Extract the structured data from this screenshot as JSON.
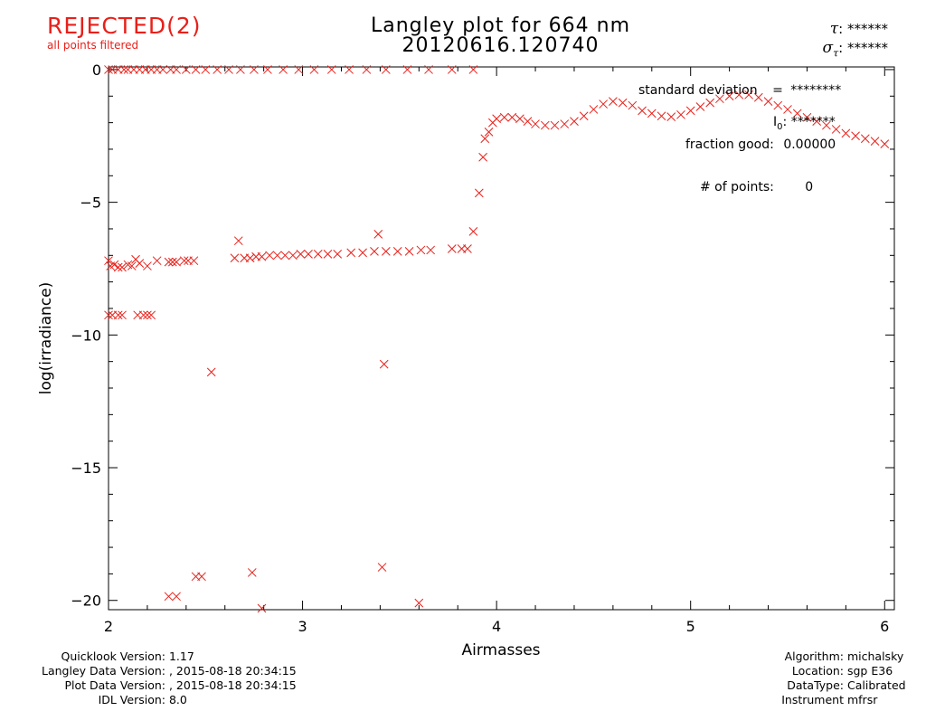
{
  "status": {
    "label": "REJECTED(2)",
    "sublabel": "all points filtered"
  },
  "header": {
    "title_line1": "Langley plot for 664 nm",
    "title_line2": "20120616.120740",
    "tau_value": "******",
    "sigma_tau_value": "******"
  },
  "stats": {
    "std_label": "standard deviation",
    "std_eq": "=",
    "std_value": "********",
    "i0_label": "I",
    "i0_sub": "0",
    "i0_value": "*******",
    "fraction_label": "fraction good:",
    "fraction_value": "0.00000",
    "points_label": "# of points:",
    "points_value": "0"
  },
  "footer": {
    "left": [
      {
        "label": "Quicklook Version:",
        "value": "1.17"
      },
      {
        "label": "Langley Data Version:",
        "value": ", 2015-08-18 20:34:15"
      },
      {
        "label": "Plot Data Version:",
        "value": ", 2015-08-18 20:34:15"
      },
      {
        "label": "IDL Version:",
        "value": "8.0"
      }
    ],
    "right": [
      {
        "label": "Algorithm:",
        "value": "michalsky"
      },
      {
        "label": "Location:",
        "value": "sgp E36"
      },
      {
        "label": "DataType:",
        "value": "Calibrated"
      },
      {
        "label": "Instrument",
        "value": "mfrsr"
      }
    ]
  },
  "colors": {
    "marker": "#e8201a",
    "axes": "#000000",
    "background": "#ffffff"
  },
  "chart_data": {
    "type": "scatter",
    "marker": "x",
    "xlabel": "Airmasses",
    "ylabel": "log(irradiance)",
    "xlim": [
      2,
      6.05
    ],
    "ylim": [
      -20.35,
      0.1
    ],
    "xticks": [
      2,
      3,
      4,
      5,
      6
    ],
    "yticks": [
      0,
      -5,
      -10,
      -15,
      -20
    ],
    "grid": false,
    "series": [
      {
        "values": [
          [
            2.0,
            0.0
          ],
          [
            2.02,
            0.0
          ],
          [
            2.05,
            0.0
          ],
          [
            2.08,
            0.0
          ],
          [
            2.1,
            0.0
          ],
          [
            2.13,
            0.0
          ],
          [
            2.16,
            0.0
          ],
          [
            2.19,
            0.0
          ],
          [
            2.22,
            0.0
          ],
          [
            2.25,
            0.0
          ],
          [
            2.28,
            0.0
          ],
          [
            2.32,
            0.0
          ],
          [
            2.35,
            0.0
          ],
          [
            2.4,
            0.0
          ],
          [
            2.45,
            0.0
          ],
          [
            2.5,
            0.0
          ],
          [
            2.56,
            0.0
          ],
          [
            2.62,
            0.0
          ],
          [
            2.68,
            0.0
          ],
          [
            2.75,
            0.0
          ],
          [
            2.82,
            0.0
          ],
          [
            2.9,
            0.0
          ],
          [
            2.98,
            0.0
          ],
          [
            3.06,
            0.0
          ],
          [
            3.15,
            0.0
          ],
          [
            3.24,
            0.0
          ],
          [
            3.33,
            0.0
          ],
          [
            3.43,
            0.0
          ],
          [
            3.54,
            0.0
          ],
          [
            3.65,
            0.0
          ],
          [
            3.77,
            0.0
          ],
          [
            3.88,
            0.0
          ],
          [
            2.0,
            -7.2
          ],
          [
            2.01,
            -7.4
          ],
          [
            2.03,
            -7.35
          ],
          [
            2.05,
            -7.45
          ],
          [
            2.07,
            -7.45
          ],
          [
            2.1,
            -7.35
          ],
          [
            2.12,
            -7.4
          ],
          [
            2.14,
            -7.15
          ],
          [
            2.16,
            -7.3
          ],
          [
            2.2,
            -7.4
          ],
          [
            2.25,
            -7.2
          ],
          [
            2.31,
            -7.25
          ],
          [
            2.33,
            -7.25
          ],
          [
            2.35,
            -7.25
          ],
          [
            2.39,
            -7.2
          ],
          [
            2.41,
            -7.2
          ],
          [
            2.44,
            -7.2
          ],
          [
            2.0,
            -9.25
          ],
          [
            2.02,
            -9.25
          ],
          [
            2.05,
            -9.25
          ],
          [
            2.07,
            -9.25
          ],
          [
            2.15,
            -9.25
          ],
          [
            2.18,
            -9.25
          ],
          [
            2.2,
            -9.25
          ],
          [
            2.22,
            -9.25
          ],
          [
            2.65,
            -7.1
          ],
          [
            2.67,
            -6.45
          ],
          [
            2.7,
            -7.1
          ],
          [
            2.73,
            -7.1
          ],
          [
            2.76,
            -7.05
          ],
          [
            2.79,
            -7.05
          ],
          [
            2.83,
            -7.0
          ],
          [
            2.87,
            -7.0
          ],
          [
            2.91,
            -7.0
          ],
          [
            2.95,
            -7.0
          ],
          [
            2.99,
            -6.95
          ],
          [
            3.03,
            -6.95
          ],
          [
            3.08,
            -6.95
          ],
          [
            3.13,
            -6.95
          ],
          [
            3.18,
            -6.95
          ],
          [
            3.25,
            -6.9
          ],
          [
            3.31,
            -6.9
          ],
          [
            3.37,
            -6.85
          ],
          [
            3.39,
            -6.2
          ],
          [
            3.43,
            -6.85
          ],
          [
            3.49,
            -6.85
          ],
          [
            3.55,
            -6.85
          ],
          [
            3.61,
            -6.8
          ],
          [
            3.66,
            -6.8
          ],
          [
            3.77,
            -6.75
          ],
          [
            3.82,
            -6.75
          ],
          [
            3.85,
            -6.75
          ],
          [
            3.88,
            -6.1
          ],
          [
            3.91,
            -4.65
          ],
          [
            3.93,
            -3.3
          ],
          [
            3.94,
            -2.6
          ],
          [
            3.96,
            -2.35
          ],
          [
            3.98,
            -2.0
          ],
          [
            4.0,
            -1.85
          ],
          [
            4.04,
            -1.8
          ],
          [
            4.08,
            -1.8
          ],
          [
            4.12,
            -1.85
          ],
          [
            4.16,
            -1.95
          ],
          [
            4.2,
            -2.05
          ],
          [
            4.25,
            -2.1
          ],
          [
            4.3,
            -2.1
          ],
          [
            4.35,
            -2.05
          ],
          [
            4.4,
            -1.95
          ],
          [
            4.45,
            -1.75
          ],
          [
            4.5,
            -1.5
          ],
          [
            4.55,
            -1.3
          ],
          [
            4.6,
            -1.2
          ],
          [
            4.65,
            -1.25
          ],
          [
            4.7,
            -1.35
          ],
          [
            4.75,
            -1.55
          ],
          [
            4.8,
            -1.65
          ],
          [
            4.85,
            -1.75
          ],
          [
            4.9,
            -1.78
          ],
          [
            4.95,
            -1.7
          ],
          [
            5.0,
            -1.55
          ],
          [
            5.05,
            -1.4
          ],
          [
            5.1,
            -1.25
          ],
          [
            5.15,
            -1.1
          ],
          [
            5.2,
            -1.0
          ],
          [
            5.25,
            -0.95
          ],
          [
            5.3,
            -0.95
          ],
          [
            5.35,
            -1.05
          ],
          [
            5.4,
            -1.2
          ],
          [
            5.45,
            -1.35
          ],
          [
            5.5,
            -1.5
          ],
          [
            5.55,
            -1.65
          ],
          [
            5.6,
            -1.8
          ],
          [
            5.65,
            -1.95
          ],
          [
            5.7,
            -2.1
          ],
          [
            5.75,
            -2.25
          ],
          [
            5.8,
            -2.4
          ],
          [
            5.85,
            -2.5
          ],
          [
            5.9,
            -2.6
          ],
          [
            5.95,
            -2.7
          ],
          [
            6.0,
            -2.8
          ],
          [
            2.53,
            -11.4
          ],
          [
            3.42,
            -11.1
          ],
          [
            2.31,
            -19.85
          ],
          [
            2.35,
            -19.85
          ],
          [
            2.45,
            -19.1
          ],
          [
            2.48,
            -19.1
          ],
          [
            2.74,
            -18.95
          ],
          [
            2.79,
            -20.3
          ],
          [
            3.41,
            -18.75
          ],
          [
            3.6,
            -20.1
          ]
        ]
      }
    ]
  }
}
